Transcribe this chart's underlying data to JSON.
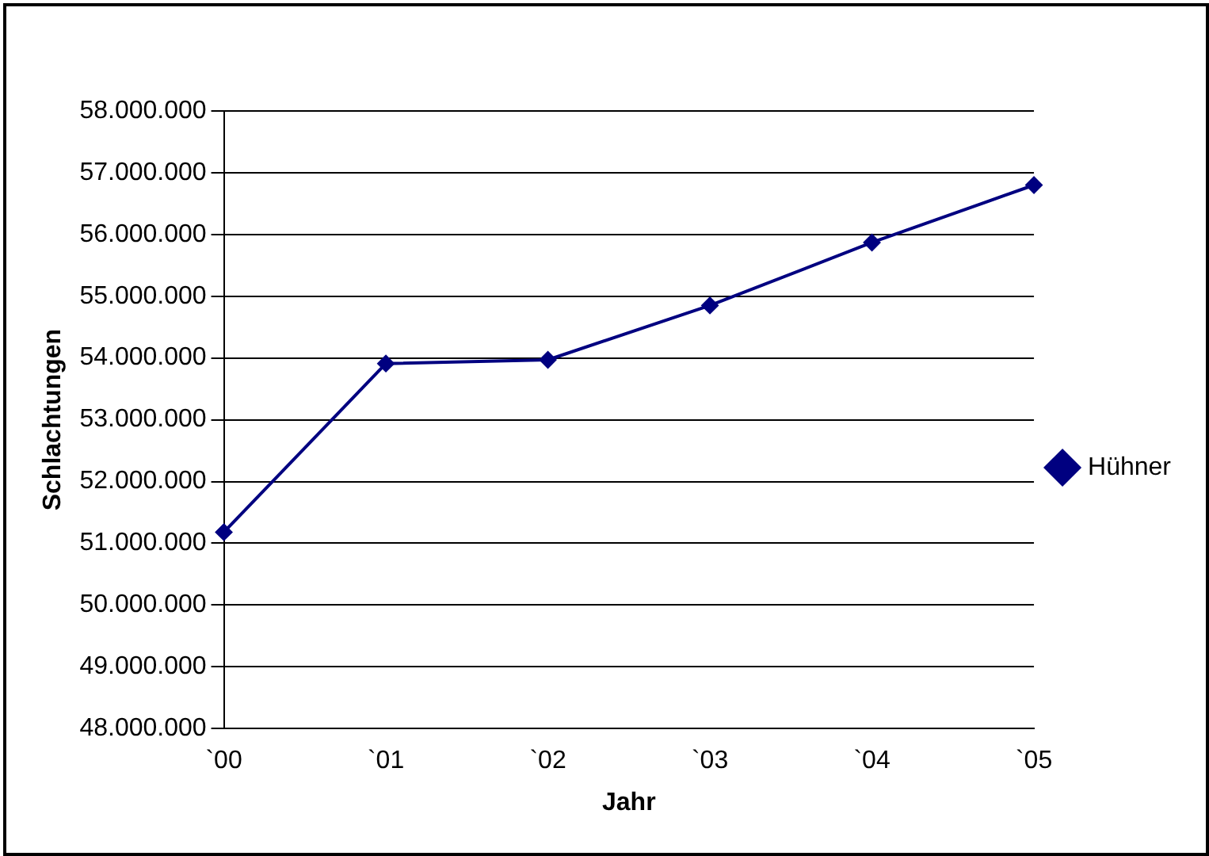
{
  "chart_data": {
    "type": "line",
    "xlabel": "Jahr",
    "ylabel": "Schlachtungen",
    "categories": [
      "`00",
      "`01",
      "`02",
      "`03",
      "`04",
      "`05"
    ],
    "series": [
      {
        "name": "Hühner",
        "color": "#000080",
        "values": [
          51180000,
          53910000,
          53970000,
          54850000,
          55870000,
          56800000
        ]
      }
    ],
    "ylim": [
      48000000,
      58000000
    ],
    "yticks": [
      {
        "value": 48000000,
        "label": "48.000.000"
      },
      {
        "value": 49000000,
        "label": "49.000.000"
      },
      {
        "value": 50000000,
        "label": "50.000.000"
      },
      {
        "value": 51000000,
        "label": "51.000.000"
      },
      {
        "value": 52000000,
        "label": "52.000.000"
      },
      {
        "value": 53000000,
        "label": "53.000.000"
      },
      {
        "value": 54000000,
        "label": "54.000.000"
      },
      {
        "value": 55000000,
        "label": "55.000.000"
      },
      {
        "value": 56000000,
        "label": "56.000.000"
      },
      {
        "value": 57000000,
        "label": "57.000.000"
      },
      {
        "value": 58000000,
        "label": "58.000.000"
      }
    ],
    "grid": "y",
    "legend": "right",
    "marker": "diamond",
    "line_style": "solid"
  }
}
